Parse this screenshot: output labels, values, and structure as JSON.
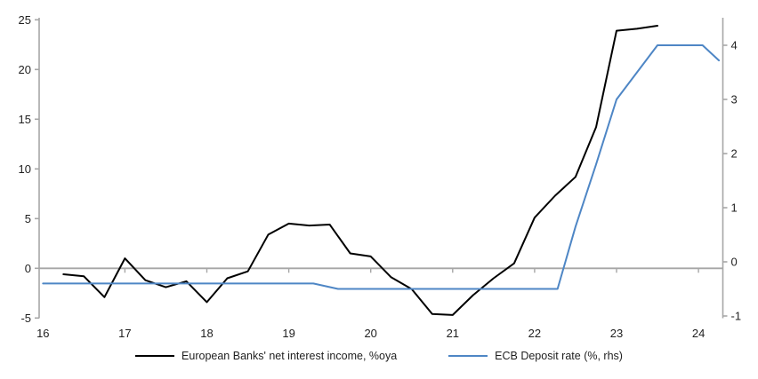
{
  "chart_data": {
    "type": "line",
    "title": "",
    "legend_position": "bottom",
    "grid": "zero-line-only",
    "colors": {
      "nii_line": "#000000",
      "ecb_line": "#4e86c5",
      "axis": "#a6a6a6",
      "tick_text": "#1f1f1f"
    },
    "left_axis": {
      "ticks": [
        25,
        20,
        15,
        10,
        5,
        0,
        -5
      ],
      "min": -5,
      "max": 25
    },
    "right_axis": {
      "ticks": [
        4,
        3,
        2,
        1,
        0,
        -1
      ],
      "min": -1,
      "max": 4.1
    },
    "x_axis": {
      "ticks": [
        16,
        17,
        18,
        19,
        20,
        21,
        22,
        23,
        24
      ],
      "min": 16,
      "max": 24.33
    },
    "series": [
      {
        "name": "European Banks' net interest income, %oya",
        "axis": "left",
        "color": "#000000",
        "x": [
          16.25,
          16.5,
          16.75,
          17.0,
          17.25,
          17.5,
          17.75,
          18.0,
          18.25,
          18.5,
          18.75,
          19.0,
          19.25,
          19.5,
          19.75,
          20.0,
          20.25,
          20.5,
          20.75,
          21.0,
          21.25,
          21.5,
          21.75,
          22.0,
          22.25,
          22.5,
          22.75,
          23.0,
          23.25,
          23.5
        ],
        "values": [
          -0.6,
          -0.8,
          -2.9,
          1.0,
          -1.2,
          -1.9,
          -1.3,
          -3.4,
          -1.0,
          -0.3,
          3.4,
          4.5,
          4.3,
          4.4,
          1.5,
          1.2,
          -0.9,
          -2.1,
          -4.6,
          -4.7,
          -2.7,
          -1.0,
          0.5,
          5.1,
          7.3,
          9.2,
          14.2,
          23.9,
          24.1,
          24.4
        ]
      },
      {
        "name": "ECB Deposit rate (%, rhs)",
        "axis": "right",
        "color": "#4e86c5",
        "x": [
          16.0,
          19.3,
          19.6,
          22.28,
          22.5,
          22.75,
          23.0,
          23.25,
          23.5,
          24.05,
          24.25
        ],
        "values": [
          -0.4,
          -0.4,
          -0.5,
          -0.5,
          0.65,
          1.8,
          3.0,
          3.5,
          4.0,
          4.0,
          3.72
        ]
      }
    ]
  },
  "legend": {
    "entries": [
      {
        "label": "European Banks' net interest income, %oya",
        "color": "#000000"
      },
      {
        "label": "ECB Deposit rate (%, rhs)",
        "color": "#4e86c5"
      }
    ]
  }
}
